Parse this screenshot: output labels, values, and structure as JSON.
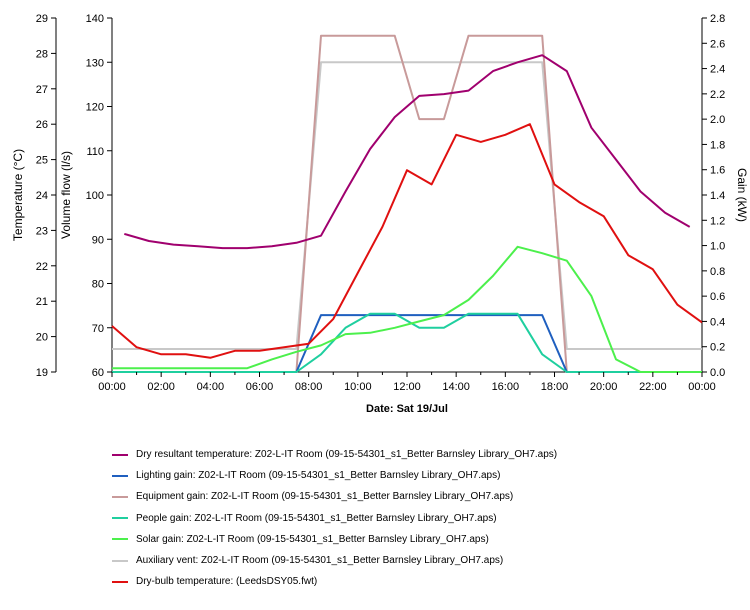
{
  "chart_data": {
    "type": "line",
    "xlabel": "Date: Sat 19/Jul",
    "x_ticks": [
      "00:00",
      "02:00",
      "04:00",
      "06:00",
      "08:00",
      "10:00",
      "12:00",
      "14:00",
      "16:00",
      "18:00",
      "20:00",
      "22:00",
      "00:00"
    ],
    "xlim": [
      0,
      24
    ],
    "y_left_outer": {
      "label": "Temperature (°C)",
      "ylim": [
        19,
        29
      ],
      "ticks": [
        "19",
        "20",
        "21",
        "22",
        "23",
        "24",
        "25",
        "26",
        "27",
        "28",
        "29"
      ]
    },
    "y_left_inner": {
      "label": "Volume flow (l/s)",
      "ylim": [
        60,
        140
      ],
      "ticks": [
        "60",
        "70",
        "80",
        "90",
        "100",
        "110",
        "120",
        "130",
        "140"
      ]
    },
    "y_right": {
      "label": "Gain (kW)",
      "ylim": [
        0,
        2.8
      ],
      "ticks": [
        "0.0",
        "0.2",
        "0.4",
        "0.6",
        "0.8",
        "1.0",
        "1.2",
        "1.4",
        "1.6",
        "1.8",
        "2.0",
        "2.2",
        "2.4",
        "2.6",
        "2.8"
      ]
    },
    "series": [
      {
        "name": "Dry resultant temperature: Z02-L-IT Room (09-15-54301_s1_Better Barnsley Library_OH7.aps)",
        "color": "#a0006e",
        "axis": "temp",
        "x": [
          0.5,
          1.5,
          2.5,
          3.5,
          4.5,
          5.5,
          6.5,
          7.5,
          8.5,
          9.5,
          10.5,
          11.5,
          12.5,
          13.5,
          14.5,
          15.5,
          16.5,
          17.5,
          18.5,
          19.5,
          20.5,
          21.5,
          22.5,
          23.5
        ],
        "y": [
          22.9,
          22.7,
          22.6,
          22.55,
          22.5,
          22.5,
          22.55,
          22.65,
          22.85,
          24.1,
          25.3,
          26.2,
          26.8,
          26.85,
          26.95,
          27.5,
          27.75,
          27.95,
          27.5,
          25.9,
          25.0,
          24.1,
          23.5,
          23.1
        ]
      },
      {
        "name": "Lighting gain: Z02-L-IT Room (09-15-54301_s1_Better Barnsley Library_OH7.aps)",
        "color": "#1f5fbf",
        "axis": "gain",
        "x": [
          0,
          7.5,
          8.5,
          17.5,
          18.5,
          24
        ],
        "y": [
          0.0,
          0.0,
          0.45,
          0.45,
          0.0,
          0.0
        ]
      },
      {
        "name": "Equipment gain: Z02-L-IT Room (09-15-54301_s1_Better Barnsley Library_OH7.aps)",
        "color": "#c89a9a",
        "axis": "gain",
        "x": [
          0,
          7.5,
          8.5,
          11.5,
          12.5,
          13.5,
          14.5,
          17.5,
          18.5,
          24
        ],
        "y": [
          0.0,
          0.0,
          2.66,
          2.66,
          2.0,
          2.0,
          2.66,
          2.66,
          0.0,
          0.0
        ]
      },
      {
        "name": "People gain: Z02-L-IT Room (09-15-54301_s1_Better Barnsley Library_OH7.aps)",
        "color": "#1fcf9f",
        "axis": "gain",
        "x": [
          0,
          7.5,
          8.5,
          9.5,
          10.5,
          11.5,
          12.5,
          13.5,
          14.5,
          15.5,
          16.5,
          17.5,
          18.5,
          24
        ],
        "y": [
          0.0,
          0.0,
          0.14,
          0.35,
          0.46,
          0.46,
          0.35,
          0.35,
          0.46,
          0.46,
          0.46,
          0.14,
          0.0,
          0.0
        ]
      },
      {
        "name": "Solar gain: Z02-L-IT Room (09-15-54301_s1_Better Barnsley Library_OH7.aps)",
        "color": "#4cf04c",
        "axis": "gain",
        "x": [
          0,
          4.5,
          5.5,
          6.5,
          7.5,
          8.5,
          9.5,
          10.5,
          11.5,
          12.5,
          13.5,
          14.5,
          15.5,
          16.5,
          17.5,
          18.5,
          19.5,
          20.5,
          21.5,
          22.5,
          24
        ],
        "y": [
          0.03,
          0.03,
          0.03,
          0.1,
          0.16,
          0.21,
          0.3,
          0.31,
          0.35,
          0.4,
          0.45,
          0.57,
          0.76,
          0.99,
          0.94,
          0.88,
          0.6,
          0.1,
          0.0,
          0.0,
          0.0
        ]
      },
      {
        "name": "Auxiliary vent: Z02-L-IT Room (09-15-54301_s1_Better Barnsley Library_OH7.aps)",
        "color": "#c8c8c8",
        "axis": "flow",
        "x": [
          0,
          7.5,
          8.5,
          17.5,
          18.5,
          24
        ],
        "y": [
          65.2,
          65.2,
          130,
          130,
          65.2,
          65.2
        ]
      },
      {
        "name": "Dry-bulb temperature:  (LeedsDSY05.fwt)",
        "color": "#e01010",
        "axis": "temp",
        "x": [
          0,
          1,
          2,
          3,
          4,
          5,
          6,
          7,
          8,
          9,
          10,
          11,
          12,
          13,
          14,
          15,
          16,
          17,
          18,
          19,
          20,
          21,
          22,
          23,
          24
        ],
        "y": [
          20.3,
          19.7,
          19.5,
          19.5,
          19.4,
          19.6,
          19.6,
          19.7,
          19.8,
          20.5,
          21.8,
          23.1,
          24.7,
          24.3,
          25.7,
          25.5,
          25.7,
          26.0,
          24.3,
          23.8,
          23.4,
          22.3,
          21.9,
          20.9,
          20.4
        ]
      }
    ]
  }
}
